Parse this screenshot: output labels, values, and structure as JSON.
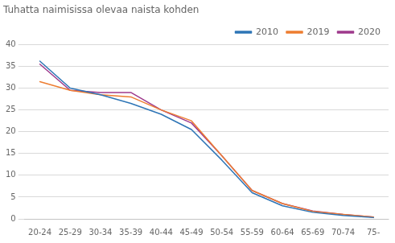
{
  "chart_data": {
    "type": "line",
    "title": "Tuhatta naimisissa olevaa naista kohden",
    "categories": [
      "20-24",
      "25-29",
      "30-34",
      "35-39",
      "40-44",
      "45-49",
      "50-54",
      "55-59",
      "60-64",
      "65-69",
      "70-74",
      "75-"
    ],
    "series": [
      {
        "name": "2010",
        "color": "#2E75B6",
        "values": [
          36.2,
          30.0,
          28.5,
          26.5,
          24.0,
          20.5,
          13.5,
          6.0,
          3.0,
          1.5,
          0.8,
          0.3
        ]
      },
      {
        "name": "2019",
        "color": "#ED7D31",
        "values": [
          31.5,
          29.5,
          28.5,
          28.0,
          25.0,
          22.5,
          14.5,
          6.5,
          3.5,
          1.7,
          1.0,
          0.4
        ]
      },
      {
        "name": "2020",
        "color": "#9E3A8C",
        "values": [
          35.5,
          29.5,
          29.0,
          29.0,
          25.0,
          22.0,
          14.5,
          6.5,
          3.5,
          1.8,
          1.0,
          0.4
        ]
      }
    ],
    "ylim": [
      0,
      40
    ],
    "yticks": [
      0,
      5,
      10,
      15,
      20,
      25,
      30,
      35,
      40
    ],
    "grid": true,
    "legend": "upper right"
  }
}
